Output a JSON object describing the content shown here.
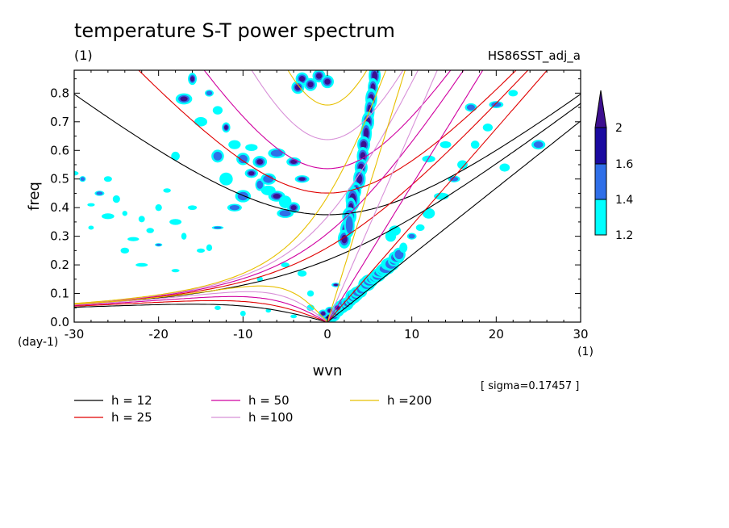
{
  "chart_data": {
    "type": "heatmap",
    "title": "temperature S-T power spectrum",
    "title_units": "(1)",
    "dataset_label": "HS86SST_adj_a",
    "xlabel": "wvn",
    "xunits": "(1)",
    "ylabel": "freq",
    "yunits": "(day-1)",
    "xlim": [
      -30,
      30
    ],
    "ylim": [
      0,
      0.88
    ],
    "x_ticks": [
      -30,
      -20,
      -10,
      0,
      10,
      20,
      30
    ],
    "y_ticks": [
      0.0,
      0.1,
      0.2,
      0.3,
      0.4,
      0.5,
      0.6,
      0.7,
      0.8
    ],
    "x_tick_labels": [
      "-30",
      "-20",
      "-10",
      "0",
      "10",
      "20",
      "30"
    ],
    "y_tick_labels": [
      "0.0",
      "0.1",
      "0.2",
      "0.3",
      "0.4",
      "0.5",
      "0.6",
      "0.7",
      "0.8"
    ],
    "sigma_label": "[ sigma=0.17457 ]",
    "colorbar": {
      "levels": [
        1.2,
        1.4,
        1.6,
        2
      ],
      "level_labels": [
        "1.2",
        "1.4",
        "1.6",
        "2"
      ],
      "colors": [
        "#00ffff",
        "#2f6fe8",
        "#1a0aa0",
        "#3d0f8f"
      ]
    },
    "legend": [
      {
        "label": "h = 12",
        "color": "#000000",
        "h": 12
      },
      {
        "label": "h = 25",
        "color": "#e00000",
        "h": 25
      },
      {
        "label": "h = 50",
        "color": "#d000a0",
        "h": 50
      },
      {
        "label": "h =100",
        "color": "#d890d8",
        "h": 100
      },
      {
        "label": "h =200",
        "color": "#e8c000",
        "h": 200
      }
    ],
    "colors": {
      "cyan": "#00ffff",
      "blue": "#2f6fe8",
      "dark_purple": "#3d0f8f",
      "navy": "#1a0aa0"
    },
    "spectral_features": [
      {
        "x": 4.5,
        "y": 0.72,
        "level": 2
      },
      {
        "x": 4.0,
        "y": 0.56,
        "level": 2
      },
      {
        "x": 2.5,
        "y": 0.42,
        "level": 2
      },
      {
        "x": 1.8,
        "y": 0.3,
        "level": 2
      },
      {
        "x": 5.5,
        "y": 0.2,
        "level": 2
      },
      {
        "x": -3.0,
        "y": 0.84,
        "level": 2
      },
      {
        "x": -5.0,
        "y": 0.42,
        "level": 1.6
      },
      {
        "x": -8.5,
        "y": 0.47,
        "level": 1.6
      },
      {
        "x": -15.0,
        "y": 0.85,
        "level": 1.6
      },
      {
        "x": 7.5,
        "y": 0.32,
        "level": 1.6
      },
      {
        "x": 1.0,
        "y": 0.13,
        "level": 1.6
      }
    ]
  }
}
